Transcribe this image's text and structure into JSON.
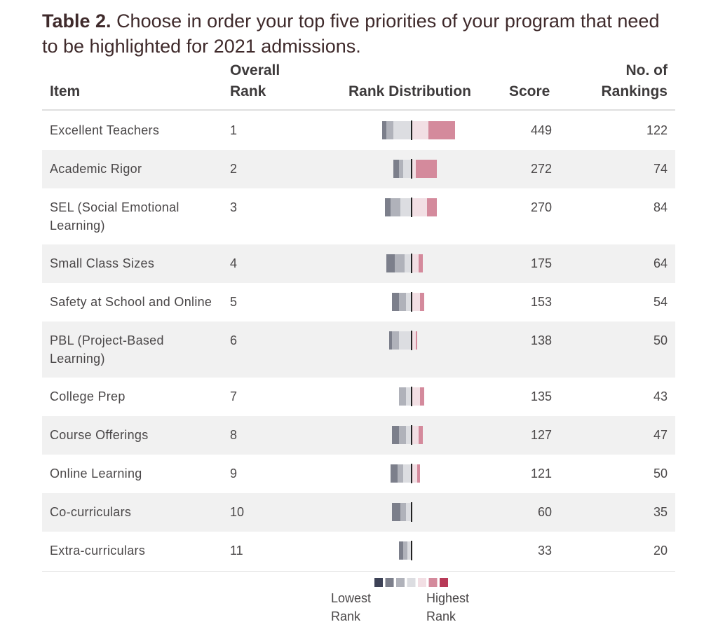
{
  "title": {
    "label": "Table 2.",
    "text": "Choose in order your top five priorities of your program that need to be highlighted for 2021 admissions."
  },
  "headers": {
    "item": "Item",
    "rank_line1": "Overall",
    "rank_line2": "Rank",
    "distribution": "Rank Distribution",
    "score": "Score",
    "count_line1": "No. of",
    "count_line2": "Rankings"
  },
  "colors": {
    "rank1": "#3d4256",
    "rank2": "#7c7f8b",
    "rank3": "#b0b2ba",
    "rank4": "#dcdde1",
    "rank5": "#f2dfe4",
    "rank6": "#d48a9c",
    "rank7": "#b83a58",
    "shaded_row": "#f1f1f1",
    "center_line": "#222222"
  },
  "chart_data": {
    "type": "table",
    "columns": [
      "Item",
      "Overall Rank",
      "Rank Distribution",
      "Score",
      "No. of Rankings"
    ],
    "segments_order": [
      "lowest",
      "2",
      "3",
      "4",
      "5",
      "6",
      "highest"
    ],
    "rows": [
      {
        "item": "Excellent Teachers",
        "rank": "1",
        "score": "449",
        "count": "122",
        "dist": [
          0,
          6,
          10,
          26,
          24,
          38,
          0
        ]
      },
      {
        "item": "Academic Rigor",
        "rank": "2",
        "score": "272",
        "count": "74",
        "dist": [
          0,
          8,
          6,
          12,
          6,
          30,
          0
        ]
      },
      {
        "item": "SEL (Social Emotional Learning)",
        "rank": "3",
        "score": "270",
        "count": "84",
        "dist": [
          0,
          8,
          14,
          16,
          22,
          14,
          0
        ]
      },
      {
        "item": "Small Class Sizes",
        "rank": "4",
        "score": "175",
        "count": "64",
        "dist": [
          0,
          12,
          14,
          10,
          10,
          6,
          0
        ]
      },
      {
        "item": "Safety at School and Online",
        "rank": "5",
        "score": "153",
        "count": "54",
        "dist": [
          0,
          10,
          10,
          8,
          12,
          6,
          0
        ]
      },
      {
        "item": "PBL (Project-Based Learning)",
        "rank": "6",
        "score": "138",
        "count": "50",
        "dist": [
          0,
          4,
          10,
          18,
          6,
          2,
          0
        ]
      },
      {
        "item": "College Prep",
        "rank": "7",
        "score": "135",
        "count": "43",
        "dist": [
          0,
          0,
          10,
          8,
          12,
          6,
          0
        ]
      },
      {
        "item": "Course Offerings",
        "rank": "8",
        "score": "127",
        "count": "47",
        "dist": [
          0,
          10,
          10,
          8,
          10,
          6,
          0
        ]
      },
      {
        "item": "Online Learning",
        "rank": "9",
        "score": "121",
        "count": "50",
        "dist": [
          0,
          10,
          8,
          12,
          8,
          4,
          0
        ]
      },
      {
        "item": "Co-curriculars",
        "rank": "10",
        "score": "60",
        "count": "35",
        "dist": [
          0,
          12,
          8,
          8,
          0,
          0,
          0
        ]
      },
      {
        "item": "Extra-curriculars",
        "rank": "11",
        "score": "33",
        "count": "20",
        "dist": [
          0,
          6,
          6,
          6,
          0,
          0,
          0
        ]
      }
    ]
  },
  "legend": {
    "low_line1": "Lowest",
    "low_line2": "Rank",
    "high_line1": "Highest",
    "high_line2": "Rank"
  }
}
